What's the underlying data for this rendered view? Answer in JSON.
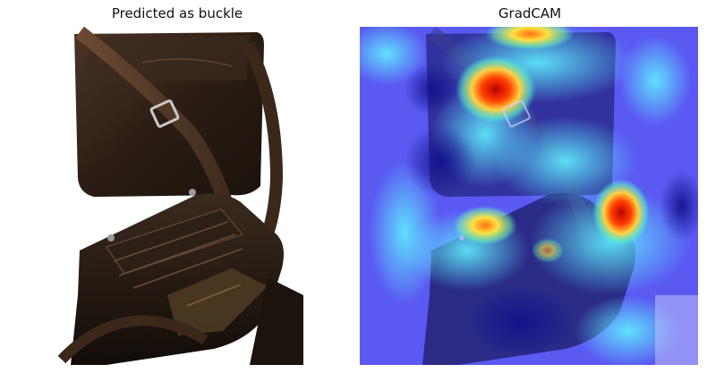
{
  "figure": {
    "left_panel": {
      "title": "Predicted as buckle",
      "image": "leather-messenger-bag-photo"
    },
    "right_panel": {
      "title": "GradCAM",
      "image": "gradcam-heatmap-overlay",
      "colormap": "jet",
      "colors": {
        "low": "#1a1aff",
        "mid": "#40e0ff",
        "high_yellow": "#ffe040",
        "peak": "#e01010"
      }
    }
  }
}
